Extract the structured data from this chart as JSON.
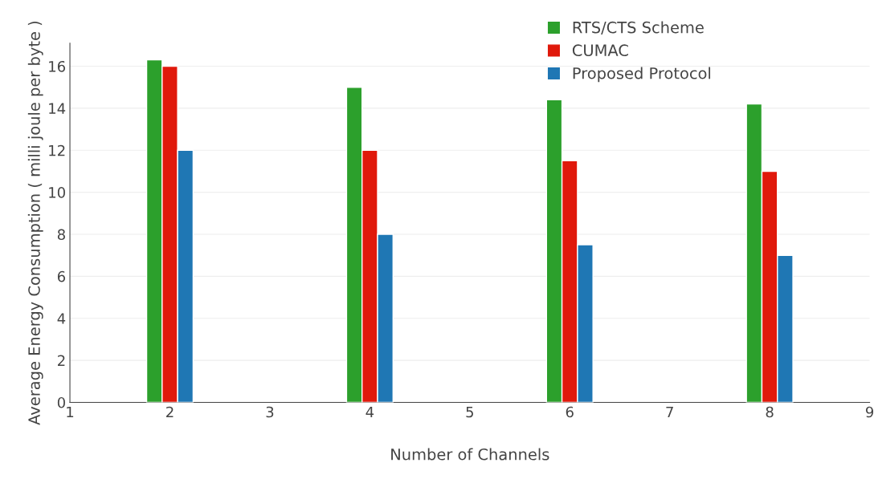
{
  "chart_data": {
    "type": "bar",
    "xlabel": "Number of Channels",
    "ylabel": "Average Energy Consumption ( milli joule per byte )",
    "x": [
      2,
      4,
      6,
      8
    ],
    "series": [
      {
        "name": "RTS/CTS Scheme",
        "color": "#2ca02c",
        "values": [
          16.3,
          15,
          14.4,
          14.2
        ]
      },
      {
        "name": "CUMAC",
        "color": "#e0190b",
        "values": [
          16,
          12,
          11.5,
          11
        ]
      },
      {
        "name": "Proposed Protocol",
        "color": "#1f77b4",
        "values": [
          12,
          8,
          7.5,
          7
        ]
      }
    ],
    "xlim": [
      1,
      9
    ],
    "xticks": [
      1,
      2,
      3,
      4,
      5,
      6,
      7,
      8,
      9
    ],
    "ylim": [
      0,
      17.1
    ],
    "yticks": [
      0,
      2,
      4,
      6,
      8,
      10,
      12,
      14,
      16
    ],
    "grid": "y",
    "legend": "top right"
  }
}
